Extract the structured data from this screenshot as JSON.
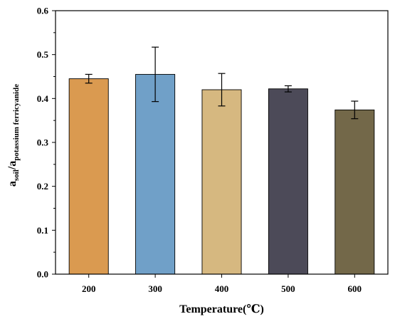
{
  "chart_data": {
    "type": "bar",
    "title": "",
    "xlabel": "Temperature(℃)",
    "ylabel": {
      "base": "a",
      "num_sub": "soil",
      "slash": "/",
      "den_base": "a",
      "den_sub": "potassium ferricyanide"
    },
    "categories": [
      "200",
      "300",
      "400",
      "500",
      "600"
    ],
    "values": [
      0.445,
      0.455,
      0.42,
      0.422,
      0.374
    ],
    "errors": [
      0.01,
      0.062,
      0.037,
      0.007,
      0.02
    ],
    "colors": [
      "#DA9A50",
      "#70A0C8",
      "#D6B880",
      "#4C4A58",
      "#736849"
    ],
    "ylim": [
      0,
      0.6
    ],
    "yticks": [
      "0.0",
      "0.1",
      "0.2",
      "0.3",
      "0.4",
      "0.5",
      "0.6"
    ],
    "grid": false,
    "legend": "none"
  }
}
